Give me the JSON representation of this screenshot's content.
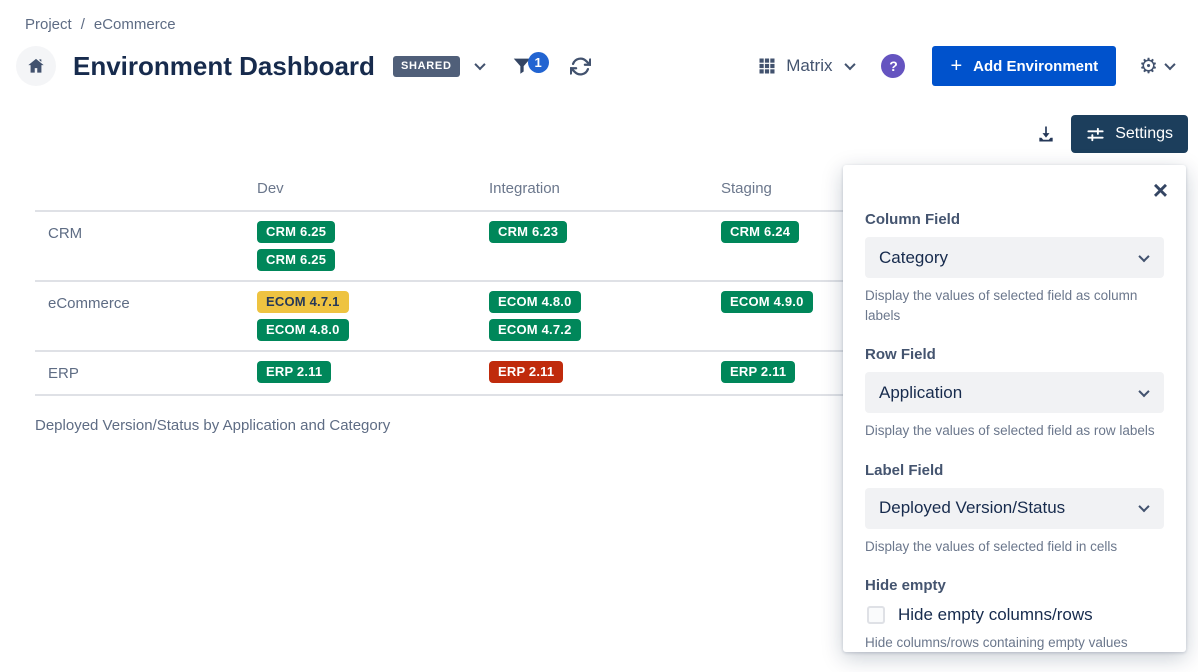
{
  "breadcrumb": {
    "project": "Project",
    "separator": "/",
    "current": "eCommerce"
  },
  "header": {
    "title": "Environment Dashboard",
    "shared_badge": "SHARED",
    "filter_count": "1",
    "view_label": "Matrix",
    "help_glyph": "?",
    "plus_glyph": "+",
    "add_environment_label": "Add Environment",
    "gear_glyph": "⚙"
  },
  "toolbar": {
    "settings_label": "Settings"
  },
  "matrix": {
    "columns": [
      "Dev",
      "Integration",
      "Staging"
    ],
    "rows": [
      {
        "label": "CRM",
        "cells": [
          [
            {
              "text": "CRM 6.25",
              "status": "green"
            },
            {
              "text": "CRM 6.25",
              "status": "green"
            }
          ],
          [
            {
              "text": "CRM 6.23",
              "status": "green"
            }
          ],
          [
            {
              "text": "CRM 6.24",
              "status": "green"
            }
          ]
        ]
      },
      {
        "label": "eCommerce",
        "cells": [
          [
            {
              "text": "ECOM 4.7.1",
              "status": "yellow"
            },
            {
              "text": "ECOM 4.8.0",
              "status": "green"
            }
          ],
          [
            {
              "text": "ECOM 4.8.0",
              "status": "green"
            },
            {
              "text": "ECOM 4.7.2",
              "status": "green"
            }
          ],
          [
            {
              "text": "ECOM 4.9.0",
              "status": "green"
            }
          ]
        ]
      },
      {
        "label": "ERP",
        "cells": [
          [
            {
              "text": "ERP 2.11",
              "status": "green"
            }
          ],
          [
            {
              "text": "ERP 2.11",
              "status": "red"
            }
          ],
          [
            {
              "text": "ERP 2.11",
              "status": "green"
            }
          ]
        ]
      }
    ],
    "caption": "Deployed Version/Status by Application and Category"
  },
  "settings_panel": {
    "close_glyph": "×",
    "sections": [
      {
        "label": "Column Field",
        "value": "Category",
        "help": "Display the values of selected field as column labels"
      },
      {
        "label": "Row Field",
        "value": "Application",
        "help": "Display the values of selected field as row labels"
      },
      {
        "label": "Label Field",
        "value": "Deployed Version/Status",
        "help": "Display the values of selected field in cells"
      }
    ],
    "hide_empty": {
      "label": "Hide empty",
      "checkbox_label": "Hide empty columns/rows",
      "help": "Hide columns/rows containing empty values",
      "checked": false
    }
  },
  "colors": {
    "status_green": "#00875A",
    "status_yellow": "#EEC341",
    "status_red": "#C02B0C",
    "accent_blue": "#0052CC",
    "settings_navy": "#1C3E5C",
    "shared_gray": "#505F79",
    "help_purple": "#6554C0",
    "filter_badge_blue": "#2264D1"
  }
}
